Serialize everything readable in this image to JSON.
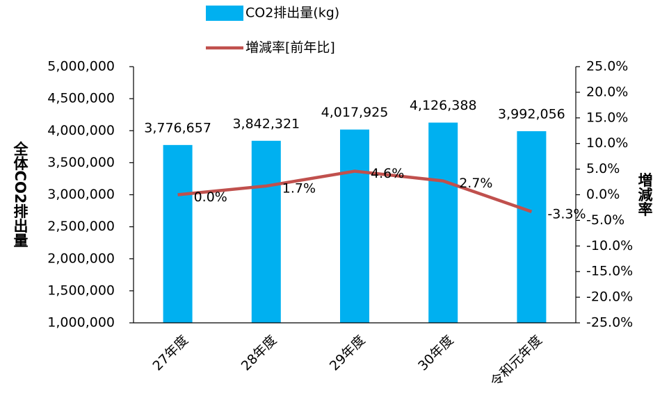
{
  "chart_data": {
    "type": "bar",
    "categories": [
      "27年度",
      "28年度",
      "29年度",
      "30年度",
      "令和元年度"
    ],
    "series": [
      {
        "name": "CO2排出量(kg)",
        "type": "bar",
        "color": "#00b0f0",
        "axis": "y",
        "values": [
          3776657,
          3842321,
          4017925,
          4126388,
          3992056
        ],
        "value_labels": [
          "3,776,657",
          "3,842,321",
          "4,017,925",
          "4,126,388",
          "3,992,056"
        ]
      },
      {
        "name": "増減率[前年比]",
        "type": "line",
        "color": "#c0504d",
        "axis": "y2",
        "values": [
          0.0,
          1.7,
          4.6,
          2.7,
          -3.3
        ],
        "value_labels": [
          "0.0%",
          "1.7%",
          "4.6%",
          "2.7%",
          "-3.3%"
        ]
      }
    ],
    "ylabel": "全体CO2排出量",
    "y2label": "増減率",
    "ylim": [
      1000000,
      5000000
    ],
    "yticks": [
      {
        "value": 1000000,
        "label": "1,000,000"
      },
      {
        "value": 1500000,
        "label": "1,500,000"
      },
      {
        "value": 2000000,
        "label": "2,000,000"
      },
      {
        "value": 2500000,
        "label": "2,500,000"
      },
      {
        "value": 3000000,
        "label": "3,000,000"
      },
      {
        "value": 3500000,
        "label": "3,500,000"
      },
      {
        "value": 4000000,
        "label": "4,000,000"
      },
      {
        "value": 4500000,
        "label": "4,500,000"
      },
      {
        "value": 5000000,
        "label": "5,000,000"
      }
    ],
    "y2lim": [
      -25,
      25
    ],
    "y2ticks": [
      {
        "value": -25,
        "label": "-25.0%"
      },
      {
        "value": -20,
        "label": "-20.0%"
      },
      {
        "value": -15,
        "label": "-15.0%"
      },
      {
        "value": -10,
        "label": "-10.0%"
      },
      {
        "value": -5,
        "label": "-5.0%"
      },
      {
        "value": 0,
        "label": "0.0%"
      },
      {
        "value": 5,
        "label": "5.0%"
      },
      {
        "value": 10,
        "label": "10.0%"
      },
      {
        "value": 15,
        "label": "15.0%"
      },
      {
        "value": 20,
        "label": "20.0%"
      },
      {
        "value": 25,
        "label": "25.0%"
      }
    ],
    "grid": false,
    "legend": "top"
  }
}
